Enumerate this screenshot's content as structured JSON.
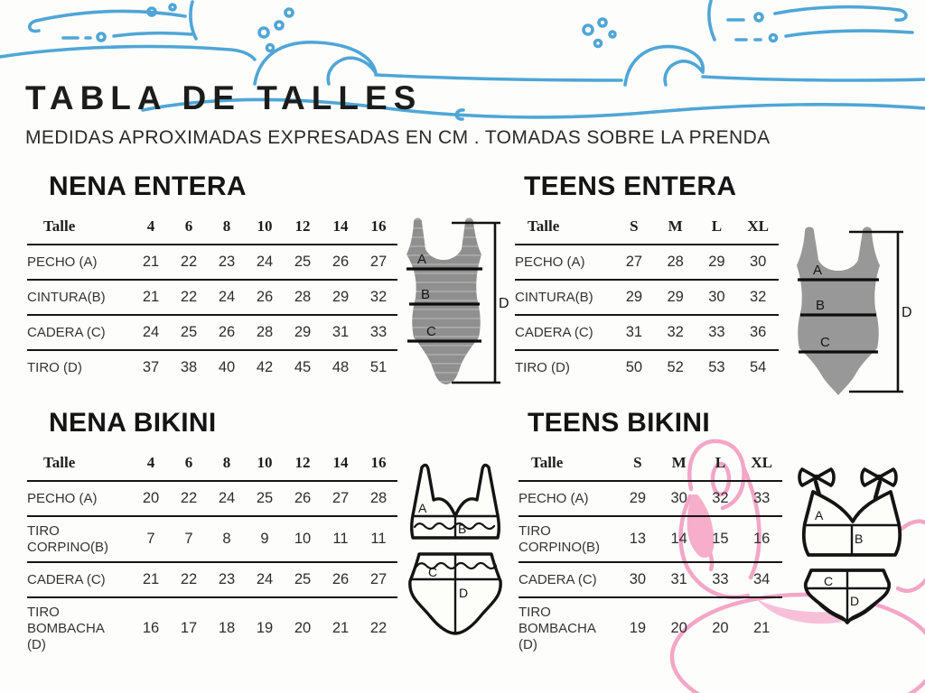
{
  "page": {
    "title": "TABLA DE TALLES",
    "subtitle": "MEDIDAS APROXIMADAS EXPRESADAS EN CM . TOMADAS SOBRE LA PRENDA"
  },
  "colors": {
    "wave_blue": "#4FA6D6",
    "suit_gray": "#8F8F8F",
    "suit_gray_stripe": "#A9A9A9",
    "flamingo_pink": "#F3A6C6",
    "flamingo_fill": "#F6AECB",
    "line_black": "#161616"
  },
  "tables": [
    {
      "id": "nena-entera",
      "title": "NENA ENTERA",
      "size_label": "Talle",
      "sizes": [
        "4",
        "6",
        "8",
        "10",
        "12",
        "14",
        "16"
      ],
      "rows": [
        {
          "label": "PECHO (A)",
          "values": [
            "21",
            "22",
            "23",
            "24",
            "25",
            "26",
            "27"
          ]
        },
        {
          "label": "CINTURA(B)",
          "values": [
            "21",
            "22",
            "24",
            "26",
            "28",
            "29",
            "32"
          ]
        },
        {
          "label": "CADERA (C)",
          "values": [
            "24",
            "25",
            "26",
            "28",
            "29",
            "31",
            "33"
          ]
        },
        {
          "label": "TIRO (D)",
          "values": [
            "37",
            "38",
            "40",
            "42",
            "45",
            "48",
            "51"
          ]
        }
      ]
    },
    {
      "id": "teens-entera",
      "title": "TEENS ENTERA",
      "size_label": "Talle",
      "sizes": [
        "S",
        "M",
        "L",
        "XL"
      ],
      "rows": [
        {
          "label": "PECHO (A)",
          "values": [
            "27",
            "28",
            "29",
            "30"
          ]
        },
        {
          "label": "CINTURA(B)",
          "values": [
            "29",
            "29",
            "30",
            "32"
          ]
        },
        {
          "label": "CADERA (C)",
          "values": [
            "31",
            "32",
            "33",
            "36"
          ]
        },
        {
          "label": "TIRO (D)",
          "values": [
            "50",
            "52",
            "53",
            "54"
          ]
        }
      ]
    },
    {
      "id": "nena-bikini",
      "title": "NENA BIKINI",
      "size_label": "Talle",
      "sizes": [
        "4",
        "6",
        "8",
        "10",
        "12",
        "14",
        "16"
      ],
      "rows": [
        {
          "label": "PECHO (A)",
          "values": [
            "20",
            "22",
            "24",
            "25",
            "26",
            "27",
            "28"
          ]
        },
        {
          "label": "TIRO\nCORPINO(B)",
          "values": [
            "7",
            "7",
            "8",
            "9",
            "10",
            "11",
            "11"
          ]
        },
        {
          "label": "CADERA (C)",
          "values": [
            "21",
            "22",
            "23",
            "24",
            "25",
            "26",
            "27"
          ]
        },
        {
          "label": "TIRO\nBOMBACHA\n(D)",
          "values": [
            "16",
            "17",
            "18",
            "19",
            "20",
            "21",
            "22"
          ]
        }
      ]
    },
    {
      "id": "teens-bikini",
      "title": "TEENS BIKINI",
      "size_label": "Talle",
      "sizes": [
        "S",
        "M",
        "L",
        "XL"
      ],
      "rows": [
        {
          "label": "PECHO (A)",
          "values": [
            "29",
            "30",
            "32",
            "33"
          ]
        },
        {
          "label": "TIRO\nCORPINO(B)",
          "values": [
            "13",
            "14",
            "15",
            "16"
          ]
        },
        {
          "label": "CADERA (C)",
          "values": [
            "30",
            "31",
            "33",
            "34"
          ]
        },
        {
          "label": "TIRO\nBOMBACHA\n(D)",
          "values": [
            "19",
            "20",
            "20",
            "21"
          ]
        }
      ]
    }
  ],
  "measure_labels": {
    "A": "A",
    "B": "B",
    "C": "C",
    "D": "D"
  }
}
